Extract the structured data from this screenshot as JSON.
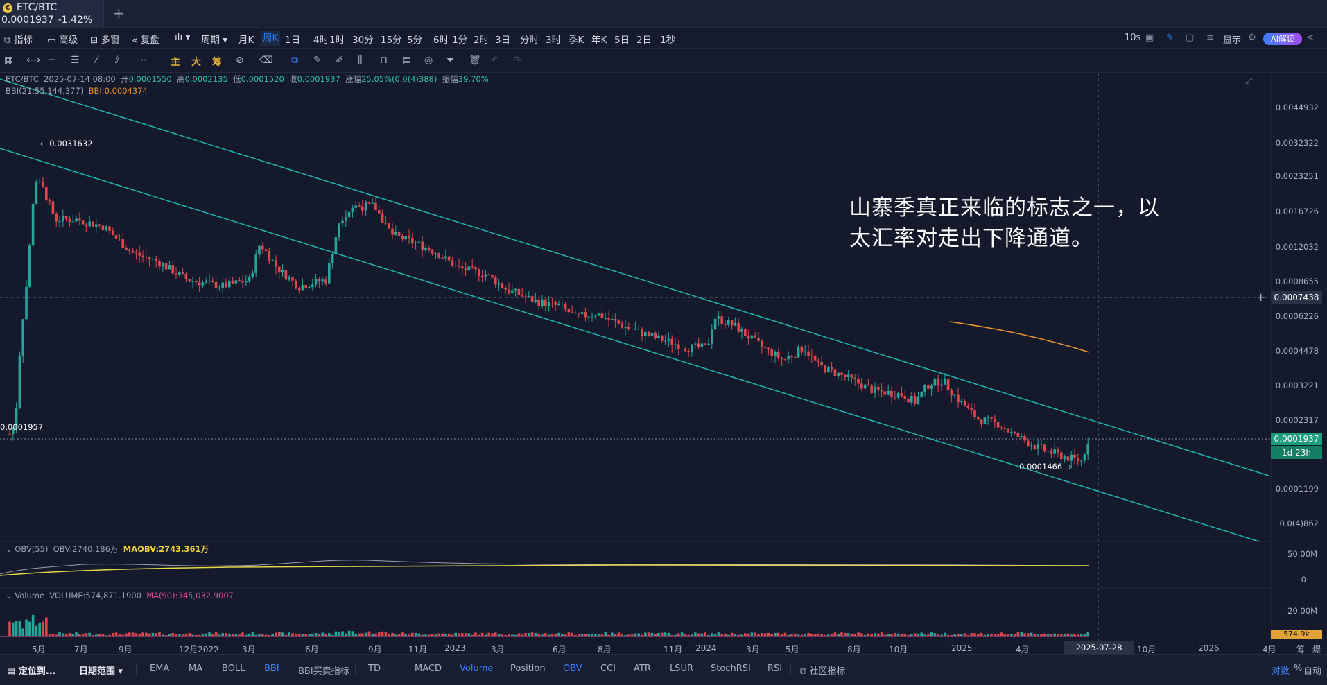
{
  "tab": {
    "symbol": "ETC/BTC",
    "logo": "€",
    "price": "0.0001937",
    "change": "-1.42%"
  },
  "toolbar1": {
    "indicator": "指标",
    "advanced": "高级",
    "multi": "多窗",
    "replay": "复盘",
    "chart_icon": "ılı",
    "period": "周期",
    "timeframes": [
      "月K",
      "周K",
      "1日",
      "4时",
      "1时",
      "30分",
      "15分",
      "5分",
      "6时",
      "1分",
      "2时",
      "3日",
      "分时",
      "3时",
      "季K",
      "年K",
      "5日",
      "2日",
      "1秒"
    ],
    "active_timeframe": "周K",
    "right": {
      "interval": "10s",
      "display": "显示",
      "ai": "AI解读"
    }
  },
  "toolbar2": {
    "main": "主",
    "big": "大",
    "chip": "筹"
  },
  "info": {
    "symbol": "ETC/BTC",
    "date": "2025-07-14 08:00",
    "open_label": "开",
    "open": "0.0001550",
    "high_label": "高",
    "high": "0.0002135",
    "low_label": "低",
    "low": "0.0001520",
    "close_label": "收",
    "close": "0.0001937",
    "change_label": "涨幅",
    "change": "25.05%(0.0(4)388)",
    "amp_label": "振幅",
    "amp": "39.70%"
  },
  "bbi": {
    "name": "BBI(21,55,144,377)",
    "value": "BBI:0.0004374"
  },
  "annotation": {
    "line1": "山寨季真正来临的标志之一，以",
    "line2": "太汇率对走出下降通道。"
  },
  "price_axis": [
    "0.0044932",
    "0.0032322",
    "0.0023251",
    "0.0016726",
    "0.0012032",
    "0.0008655",
    "0.0006226",
    "0.0004478",
    "0.0003221",
    "0.0002317",
    "0.0001199",
    "0.0(4)862"
  ],
  "hover_price": "0.0007438",
  "current": {
    "price": "0.0001937",
    "countdown": "1d 23h"
  },
  "markers": {
    "high": "← 0.0031632",
    "low": "0.0001466 →",
    "start": "0.0001957"
  },
  "obv": {
    "name": "OBV(55)",
    "value": "OBV:2740.186万",
    "ma": "MAOBV:2743.361万",
    "axis": [
      "50.00M",
      "0"
    ]
  },
  "volume": {
    "name": "Volume",
    "value": "VOLUME:574,871.1900",
    "ma": "MA(90):345,032.9007",
    "axis": "20.00M",
    "current": "574.9k"
  },
  "x_axis": {
    "labels": [
      "5月",
      "7月",
      "9月",
      "12月2022",
      "3月",
      "6月",
      "9月",
      "11月",
      "2023",
      "3月",
      "6月",
      "8月",
      "11月",
      "2024",
      "3月",
      "5月",
      "8月",
      "10月",
      "2025",
      "4月",
      "10月",
      "2026",
      "4月"
    ],
    "cursor": "2025-07-28 08:00",
    "right": [
      "筹",
      "爆"
    ]
  },
  "bottom": {
    "locate": "定位到...",
    "range": "日期范围",
    "indicators": [
      "EMA",
      "MA",
      "BOLL",
      "BBI",
      "BBI买卖指标",
      "TD",
      "MACD",
      "Volume",
      "Position",
      "OBV",
      "CCI",
      "ATR",
      "LSUR",
      "StochRSI",
      "RSI"
    ],
    "community": "社区指标",
    "right": [
      "对数",
      "%",
      "自动"
    ]
  },
  "colors": {
    "up": "#26a69a",
    "down": "#e0474c",
    "channel": "#1fb6b0",
    "bbi": "#f0912e",
    "obv": "#9aa0ad",
    "maobv": "#e8d84a"
  },
  "chart_data": {
    "type": "candlestick",
    "scale": "log",
    "ylim": [
      8.62e-05,
      0.0044932
    ],
    "x_range": [
      "2021-04",
      "2026-04"
    ],
    "highlights": {
      "high": 0.0031632,
      "low": 0.0001466,
      "last_close": 0.0001937
    },
    "candles_approx": [
      {
        "t": "2021-04",
        "o": 0.0001957,
        "c": 0.0008,
        "up": true
      },
      {
        "t": "2021-05",
        "o": 0.0008,
        "c": 0.0022,
        "up": true
      },
      {
        "t": "2021-07",
        "o": 0.0016,
        "c": 0.0014,
        "up": false
      },
      {
        "t": "2021-09",
        "o": 0.0015,
        "c": 0.0011,
        "up": false
      },
      {
        "t": "2022-01",
        "o": 0.0009,
        "c": 0.0008,
        "up": false
      },
      {
        "t": "2022-05",
        "o": 0.0008,
        "c": 0.001,
        "up": true
      },
      {
        "t": "2022-09",
        "o": 0.0017,
        "c": 0.0015,
        "up": false
      },
      {
        "t": "2023-01",
        "o": 0.0012,
        "c": 0.001,
        "up": false
      },
      {
        "t": "2023-06",
        "o": 0.0007,
        "c": 0.0006,
        "up": false
      },
      {
        "t": "2024-01",
        "o": 0.0006,
        "c": 0.0005,
        "up": false
      },
      {
        "t": "2024-06",
        "o": 0.0004,
        "c": 0.0003,
        "up": false
      },
      {
        "t": "2024-12",
        "o": 0.0003,
        "c": 0.0003,
        "up": true
      },
      {
        "t": "2025-04",
        "o": 0.0002,
        "c": 0.0002,
        "up": false
      },
      {
        "t": "2025-07",
        "o": 0.000155,
        "c": 0.0001937,
        "up": true
      }
    ]
  }
}
